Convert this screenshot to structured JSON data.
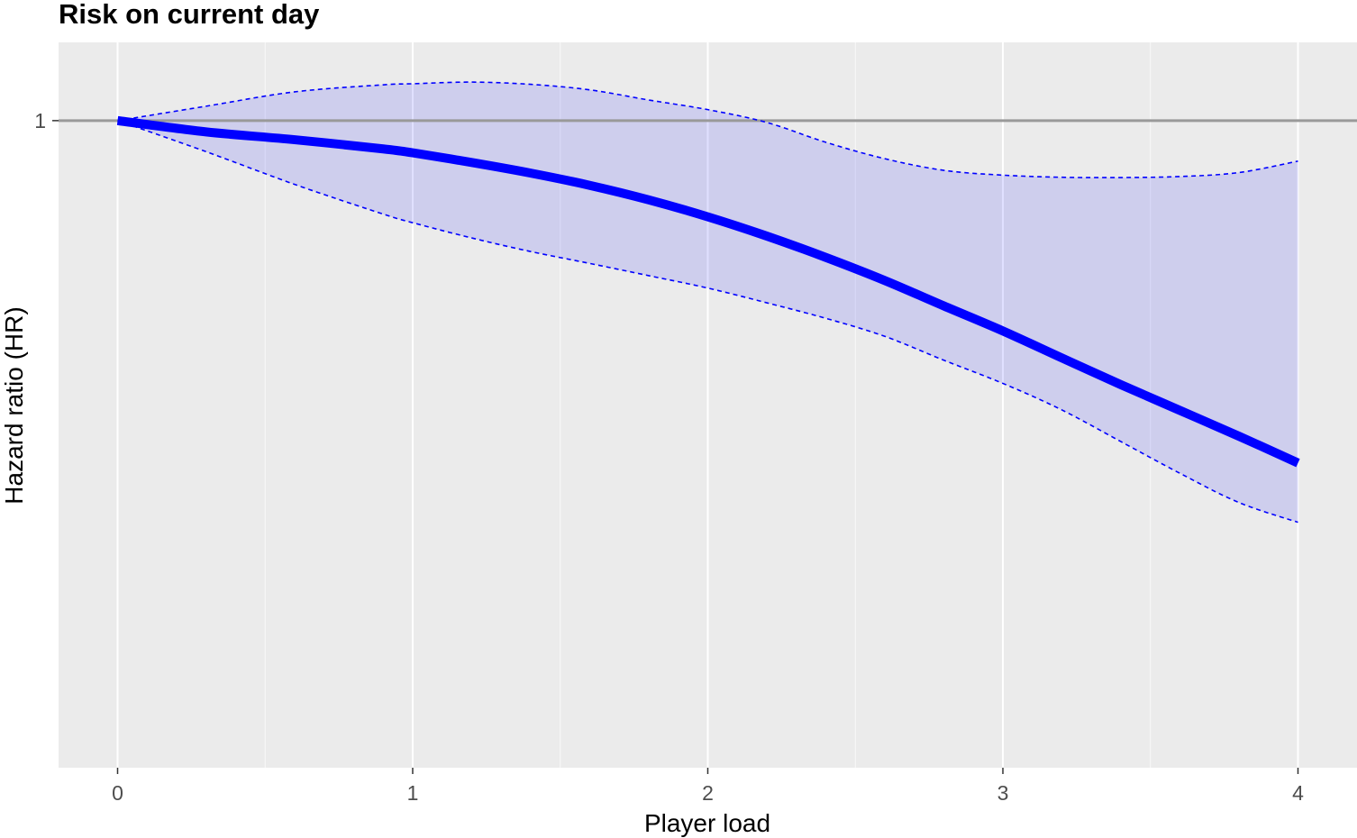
{
  "chart_data": {
    "type": "line",
    "title": "Risk on current day",
    "xlabel": "Player load",
    "ylabel": "Hazard ratio (HR)",
    "xlim": [
      -0.2,
      4.2
    ],
    "ylim": [
      0.4737,
      1.0946
    ],
    "x_ticks": [
      0,
      1,
      2,
      3,
      4
    ],
    "x_tick_labels": [
      "0",
      "1",
      "2",
      "3",
      "4"
    ],
    "y_ticks": [
      1
    ],
    "y_tick_labels": [
      "1"
    ],
    "reference_line": {
      "y": 1
    },
    "grid": true,
    "legend": "none",
    "series": [
      {
        "role": "estimate",
        "x": [
          0,
          0.3,
          0.6,
          0.9,
          1.0,
          1.2,
          1.4,
          1.6,
          1.8,
          2.0,
          2.2,
          2.4,
          2.6,
          2.8,
          3.0,
          3.2,
          3.4,
          3.6,
          3.8,
          4.0
        ],
        "y": [
          1.0,
          0.9871,
          0.9782,
          0.9679,
          0.9635,
          0.9528,
          0.9412,
          0.928,
          0.9126,
          0.8949,
          0.8752,
          0.8539,
          0.8314,
          0.8074,
          0.7844,
          0.7603,
          0.7372,
          0.7156,
          0.6946,
          0.6735
        ]
      },
      {
        "role": "ci_upper",
        "x": [
          0,
          0.3,
          0.6,
          0.9,
          1.0,
          1.2,
          1.4,
          1.6,
          1.8,
          2.0,
          2.2,
          2.4,
          2.6,
          2.8,
          3.0,
          3.2,
          3.4,
          3.6,
          3.8,
          4.0
        ],
        "y": [
          1.0,
          1.0168,
          1.0338,
          1.0422,
          1.0435,
          1.0455,
          1.0428,
          1.0362,
          1.0241,
          1.0128,
          0.9979,
          0.9753,
          0.957,
          0.9442,
          0.939,
          0.9367,
          0.9364,
          0.9375,
          0.9418,
          0.9543
        ]
      },
      {
        "role": "ci_lower",
        "x": [
          0,
          0.3,
          0.6,
          0.9,
          1.0,
          1.2,
          1.4,
          1.6,
          1.8,
          2.0,
          2.2,
          2.4,
          2.6,
          2.8,
          3.0,
          3.2,
          3.4,
          3.6,
          3.8,
          4.0
        ],
        "y": [
          1.0,
          0.9648,
          0.929,
          0.8977,
          0.8888,
          0.8733,
          0.8597,
          0.848,
          0.8361,
          0.8242,
          0.8103,
          0.7959,
          0.7795,
          0.7583,
          0.7383,
          0.716,
          0.6903,
          0.6655,
          0.6434,
          0.6289
        ]
      }
    ],
    "colors": {
      "estimate": "#0000ff",
      "ci_line": "#0000ff",
      "ci_fill": "#0000ff",
      "reference_line": "#999999",
      "panel_bg": "#ebebeb",
      "grid": "#ffffff",
      "tick_text": "#4d4d4d"
    }
  }
}
